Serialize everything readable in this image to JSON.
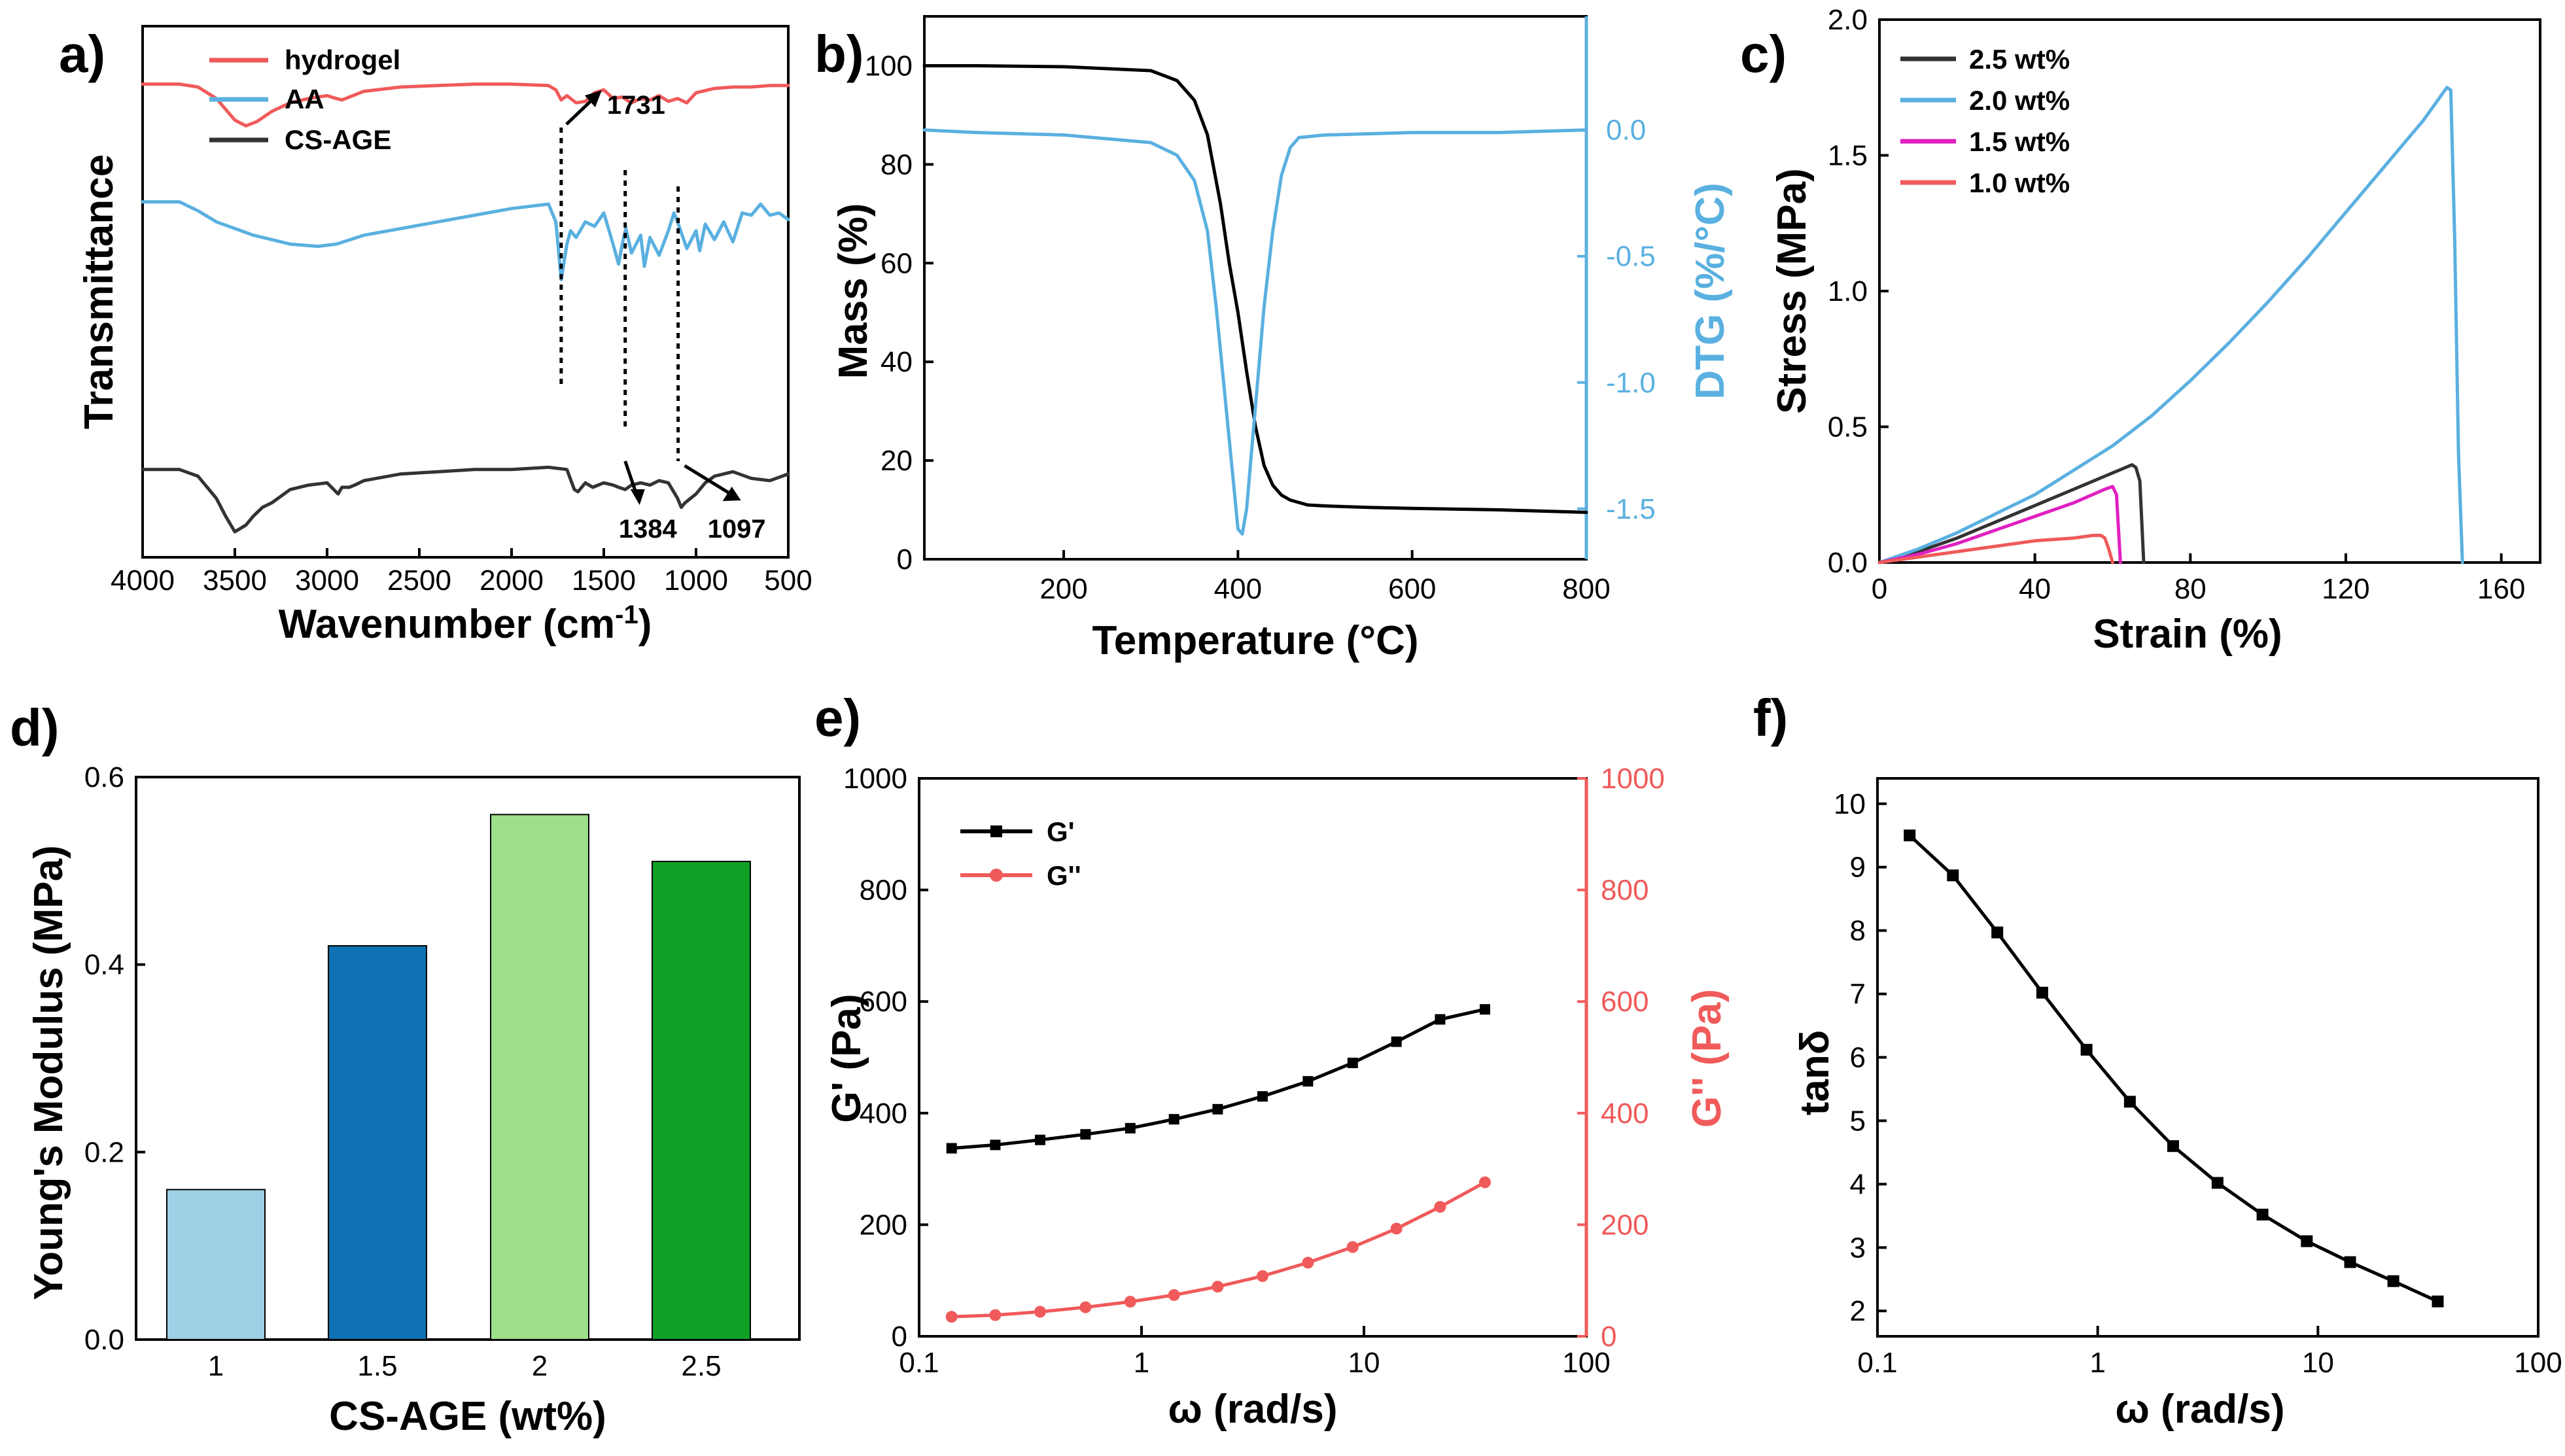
{
  "colors": {
    "hydrogel": "#f05a5a",
    "aa": "#5ab0e0",
    "csage": "#333333",
    "dtg": "#5ab0e0",
    "gpp": "#f05a5a",
    "s25": "#333333",
    "s20": "#5ab0e0",
    "s15": "#e020c0",
    "s10": "#f05a5a",
    "bar1": "#9fd0e6",
    "bar15": "#0e72b4",
    "bar2": "#9fde88",
    "bar25": "#10a025"
  },
  "chart_data": [
    {
      "panel": "a)",
      "type": "line",
      "title": "",
      "xlabel": "Wavenumber (cm",
      "xlabel_sup": "-1",
      "xlabel_close": ")",
      "ylabel": "Transmittance",
      "xlim": [
        4000,
        500
      ],
      "ylim": [
        0,
        1
      ],
      "x_ticks": [
        4000,
        3500,
        3000,
        2500,
        2000,
        1500,
        1000,
        500
      ],
      "series": [
        {
          "name": "hydrogel",
          "color": "#f05a5a",
          "x": [
            4000,
            3800,
            3700,
            3600,
            3500,
            3440,
            3380,
            3300,
            3200,
            3100,
            3000,
            2950,
            2920,
            2880,
            2800,
            2600,
            2400,
            2200,
            2000,
            1800,
            1760,
            1731,
            1700,
            1650,
            1600,
            1550,
            1500,
            1450,
            1400,
            1350,
            1300,
            1250,
            1200,
            1150,
            1100,
            1050,
            1000,
            900,
            800,
            700,
            600,
            500
          ],
          "y": [
            0.87,
            0.87,
            0.85,
            0.77,
            0.62,
            0.58,
            0.61,
            0.68,
            0.74,
            0.77,
            0.79,
            0.77,
            0.76,
            0.78,
            0.82,
            0.85,
            0.86,
            0.87,
            0.87,
            0.86,
            0.83,
            0.76,
            0.79,
            0.74,
            0.75,
            0.81,
            0.83,
            0.77,
            0.78,
            0.74,
            0.77,
            0.76,
            0.79,
            0.75,
            0.77,
            0.74,
            0.81,
            0.84,
            0.85,
            0.85,
            0.86,
            0.86
          ]
        },
        {
          "name": "AA",
          "color": "#5ab0e0",
          "x": [
            4000,
            3800,
            3700,
            3600,
            3400,
            3200,
            3050,
            2950,
            2800,
            2600,
            2400,
            2200,
            2000,
            1800,
            1760,
            1731,
            1700,
            1680,
            1650,
            1600,
            1550,
            1500,
            1450,
            1420,
            1400,
            1380,
            1350,
            1300,
            1280,
            1250,
            1200,
            1150,
            1120,
            1100,
            1050,
            1000,
            980,
            950,
            900,
            850,
            800,
            750,
            700,
            650,
            600,
            550,
            500
          ],
          "y": [
            0.71,
            0.71,
            0.67,
            0.62,
            0.56,
            0.52,
            0.51,
            0.52,
            0.56,
            0.59,
            0.62,
            0.65,
            0.68,
            0.7,
            0.62,
            0.36,
            0.52,
            0.58,
            0.55,
            0.62,
            0.6,
            0.66,
            0.52,
            0.43,
            0.52,
            0.59,
            0.48,
            0.56,
            0.42,
            0.55,
            0.47,
            0.58,
            0.66,
            0.62,
            0.5,
            0.58,
            0.49,
            0.61,
            0.54,
            0.62,
            0.53,
            0.66,
            0.65,
            0.7,
            0.65,
            0.66,
            0.63
          ]
        },
        {
          "name": "CS-AGE",
          "color": "#333333",
          "x": [
            4000,
            3800,
            3700,
            3600,
            3550,
            3500,
            3440,
            3400,
            3350,
            3300,
            3200,
            3100,
            3000,
            2940,
            2920,
            2880,
            2850,
            2800,
            2600,
            2400,
            2200,
            2000,
            1800,
            1700,
            1660,
            1640,
            1600,
            1560,
            1500,
            1450,
            1420,
            1384,
            1350,
            1300,
            1250,
            1200,
            1150,
            1100,
            1080,
            1060,
            1030,
            1000,
            950,
            900,
            800,
            700,
            600,
            500
          ],
          "y": [
            0.33,
            0.33,
            0.3,
            0.2,
            0.12,
            0.05,
            0.08,
            0.12,
            0.16,
            0.18,
            0.24,
            0.26,
            0.27,
            0.22,
            0.25,
            0.25,
            0.26,
            0.28,
            0.31,
            0.32,
            0.33,
            0.33,
            0.34,
            0.33,
            0.24,
            0.23,
            0.27,
            0.25,
            0.27,
            0.26,
            0.25,
            0.24,
            0.26,
            0.27,
            0.26,
            0.28,
            0.27,
            0.2,
            0.16,
            0.18,
            0.2,
            0.22,
            0.27,
            0.3,
            0.32,
            0.29,
            0.28,
            0.31
          ]
        }
      ],
      "legend": [
        "hydrogel",
        "AA",
        "CS-AGE"
      ],
      "annotations": [
        "1731",
        "1384",
        "1097"
      ],
      "annotation_wavenumbers": [
        1731,
        1384,
        1097
      ]
    },
    {
      "panel": "b)",
      "type": "line",
      "title": "",
      "xlabel": "Temperature (°C)",
      "ylabel": "Mass (%)",
      "y2label": "DTG (%/°C)",
      "xlim": [
        40,
        800
      ],
      "ylim": [
        0,
        110
      ],
      "y2lim": [
        -1.7,
        0.45
      ],
      "x_ticks": [
        200,
        400,
        600,
        800
      ],
      "y_ticks": [
        0,
        20,
        40,
        60,
        80,
        100
      ],
      "y2_ticks": [
        "0.0",
        "-0.5",
        "-1.0",
        "-1.5"
      ],
      "y2_tick_values": [
        0.0,
        -0.5,
        -1.0,
        -1.5
      ],
      "series": [
        {
          "name": "Mass",
          "axis": "left",
          "color": "#000000",
          "x": [
            40,
            100,
            200,
            300,
            330,
            350,
            365,
            380,
            390,
            400,
            410,
            420,
            430,
            440,
            450,
            460,
            480,
            500,
            550,
            600,
            700,
            800
          ],
          "y": [
            100,
            100,
            99.8,
            99,
            97,
            93,
            86,
            72,
            60,
            50,
            38,
            27,
            19,
            15,
            13,
            12,
            11,
            10.8,
            10.5,
            10.3,
            10,
            9.5
          ]
        },
        {
          "name": "DTG",
          "axis": "right",
          "color": "#5ab0e0",
          "x": [
            40,
            100,
            200,
            300,
            330,
            350,
            365,
            375,
            385,
            395,
            400,
            405,
            410,
            415,
            420,
            430,
            440,
            450,
            460,
            470,
            500,
            600,
            700,
            800
          ],
          "y": [
            0.0,
            -0.01,
            -0.02,
            -0.05,
            -0.1,
            -0.2,
            -0.4,
            -0.7,
            -1.05,
            -1.4,
            -1.58,
            -1.6,
            -1.5,
            -1.3,
            -1.1,
            -0.7,
            -0.4,
            -0.18,
            -0.07,
            -0.03,
            -0.02,
            -0.01,
            -0.01,
            0.0
          ]
        }
      ]
    },
    {
      "panel": "c)",
      "type": "line",
      "title": "",
      "xlabel": "Strain (%)",
      "ylabel": "Stress (MPa)",
      "xlim": [
        0,
        170
      ],
      "ylim": [
        0,
        2.0
      ],
      "x_ticks": [
        0,
        40,
        80,
        120,
        160
      ],
      "y_ticks": [
        "0.0",
        "0.5",
        "1.0",
        "1.5",
        "2.0"
      ],
      "y_tick_values": [
        0.0,
        0.5,
        1.0,
        1.5,
        2.0
      ],
      "series": [
        {
          "name": "2.5 wt%",
          "color": "#333333",
          "x": [
            0,
            10,
            20,
            30,
            40,
            50,
            60,
            65,
            66,
            67,
            68
          ],
          "y": [
            0,
            0.04,
            0.09,
            0.15,
            0.21,
            0.27,
            0.33,
            0.36,
            0.35,
            0.3,
            0
          ]
        },
        {
          "name": "2.0 wt%",
          "color": "#5ab0e0",
          "x": [
            0,
            10,
            20,
            30,
            40,
            50,
            60,
            70,
            80,
            90,
            100,
            110,
            120,
            130,
            140,
            146,
            147,
            148,
            149,
            150
          ],
          "y": [
            0,
            0.05,
            0.11,
            0.18,
            0.25,
            0.34,
            0.43,
            0.54,
            0.67,
            0.81,
            0.96,
            1.12,
            1.29,
            1.46,
            1.63,
            1.75,
            1.74,
            1.2,
            0.4,
            0
          ]
        },
        {
          "name": "1.5 wt%",
          "color": "#e020c0",
          "x": [
            0,
            10,
            20,
            30,
            40,
            50,
            58,
            60,
            61,
            62
          ],
          "y": [
            0,
            0.03,
            0.07,
            0.12,
            0.17,
            0.22,
            0.27,
            0.28,
            0.25,
            0
          ]
        },
        {
          "name": "1.0 wt%",
          "color": "#f05a5a",
          "x": [
            0,
            10,
            20,
            30,
            40,
            50,
            55,
            57,
            58,
            59,
            60
          ],
          "y": [
            0,
            0.02,
            0.04,
            0.06,
            0.08,
            0.09,
            0.1,
            0.1,
            0.09,
            0.05,
            0
          ]
        }
      ]
    },
    {
      "panel": "d)",
      "type": "bar",
      "title": "",
      "xlabel": "CS-AGE (wt%)",
      "ylabel": "Young's Modulus (MPa)",
      "categories": [
        "1",
        "1.5",
        "2",
        "2.5"
      ],
      "values": [
        0.16,
        0.42,
        0.56,
        0.51
      ],
      "ylim": [
        0,
        0.6
      ],
      "y_ticks": [
        "0.0",
        "0.2",
        "0.4",
        "0.6"
      ],
      "y_tick_values": [
        0.0,
        0.2,
        0.4,
        0.6
      ]
    },
    {
      "panel": "e)",
      "type": "line",
      "title": "",
      "xlabel": "ω (rad/s)",
      "ylabel": "G' (Pa)",
      "y2label": "G'' (Pa)",
      "xscale": "log",
      "xlim": [
        0.1,
        100
      ],
      "ylim": [
        0,
        1000
      ],
      "y2lim": [
        0,
        1000
      ],
      "x_ticks": [
        "0.1",
        "1",
        "10",
        "100"
      ],
      "x_tick_values": [
        0.1,
        1,
        10,
        100
      ],
      "y_ticks": [
        0,
        200,
        400,
        600,
        800,
        1000
      ],
      "y2_ticks": [
        0,
        200,
        400,
        600,
        800,
        1000
      ],
      "legend": [
        "G'",
        "G''"
      ],
      "series": [
        {
          "name": "G'",
          "axis": "left",
          "color": "#000000",
          "x": [
            0.14,
            0.22,
            0.35,
            0.56,
            0.89,
            1.4,
            2.2,
            3.5,
            5.6,
            8.9,
            14,
            22,
            35
          ],
          "y": [
            337,
            343,
            352,
            362,
            373,
            389,
            407,
            430,
            457,
            490,
            528,
            568,
            586
          ]
        },
        {
          "name": "G''",
          "axis": "right",
          "color": "#f05a5a",
          "x": [
            0.14,
            0.22,
            0.35,
            0.56,
            0.89,
            1.4,
            2.2,
            3.5,
            5.6,
            8.9,
            14,
            22,
            35
          ],
          "y": [
            35,
            38,
            44,
            52,
            62,
            74,
            89,
            108,
            132,
            160,
            193,
            232,
            276
          ]
        }
      ]
    },
    {
      "panel": "f)",
      "type": "line",
      "title": "",
      "xlabel": "ω (rad/s)",
      "ylabel": "tanδ",
      "xscale": "log",
      "xlim": [
        0.1,
        100
      ],
      "ylim": [
        1.6,
        10.4
      ],
      "x_ticks": [
        "0.1",
        "1",
        "10",
        "100"
      ],
      "x_tick_values": [
        0.1,
        1,
        10,
        100
      ],
      "y_ticks": [
        2,
        3,
        4,
        5,
        6,
        7,
        8,
        9,
        10
      ],
      "series": [
        {
          "name": "tanδ",
          "color": "#000000",
          "x": [
            0.14,
            0.22,
            0.35,
            0.56,
            0.89,
            1.4,
            2.2,
            3.5,
            5.6,
            8.9,
            14,
            22,
            35
          ],
          "y": [
            9.5,
            8.87,
            7.97,
            7.02,
            6.12,
            5.3,
            4.6,
            4.02,
            3.52,
            3.1,
            2.77,
            2.47,
            2.15
          ]
        }
      ]
    }
  ]
}
